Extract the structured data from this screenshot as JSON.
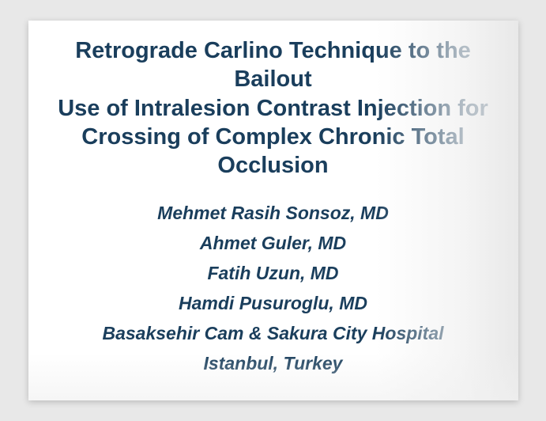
{
  "slide": {
    "title_line1": "Retrograde Carlino Technique to the Bailout",
    "title_line2": "Use of Intralesion Contrast Injection for",
    "title_line3": "Crossing of Complex Chronic Total",
    "title_line4": "Occlusion",
    "authors": [
      "Mehmet Rasih Sonsoz, MD",
      "Ahmet Guler, MD",
      "Fatih Uzun, MD",
      "Hamdi Pusuroglu, MD",
      "Basaksehir Cam & Sakura City Hospital",
      "Istanbul, Turkey"
    ],
    "styling": {
      "title_color": "#1a3e5c",
      "author_color": "#1a3e5c",
      "background_color": "#ffffff",
      "page_background": "#e8e8e8",
      "title_fontsize": 29,
      "author_fontsize": 23,
      "title_weight": "bold",
      "author_weight": "bold",
      "author_style": "italic"
    }
  }
}
